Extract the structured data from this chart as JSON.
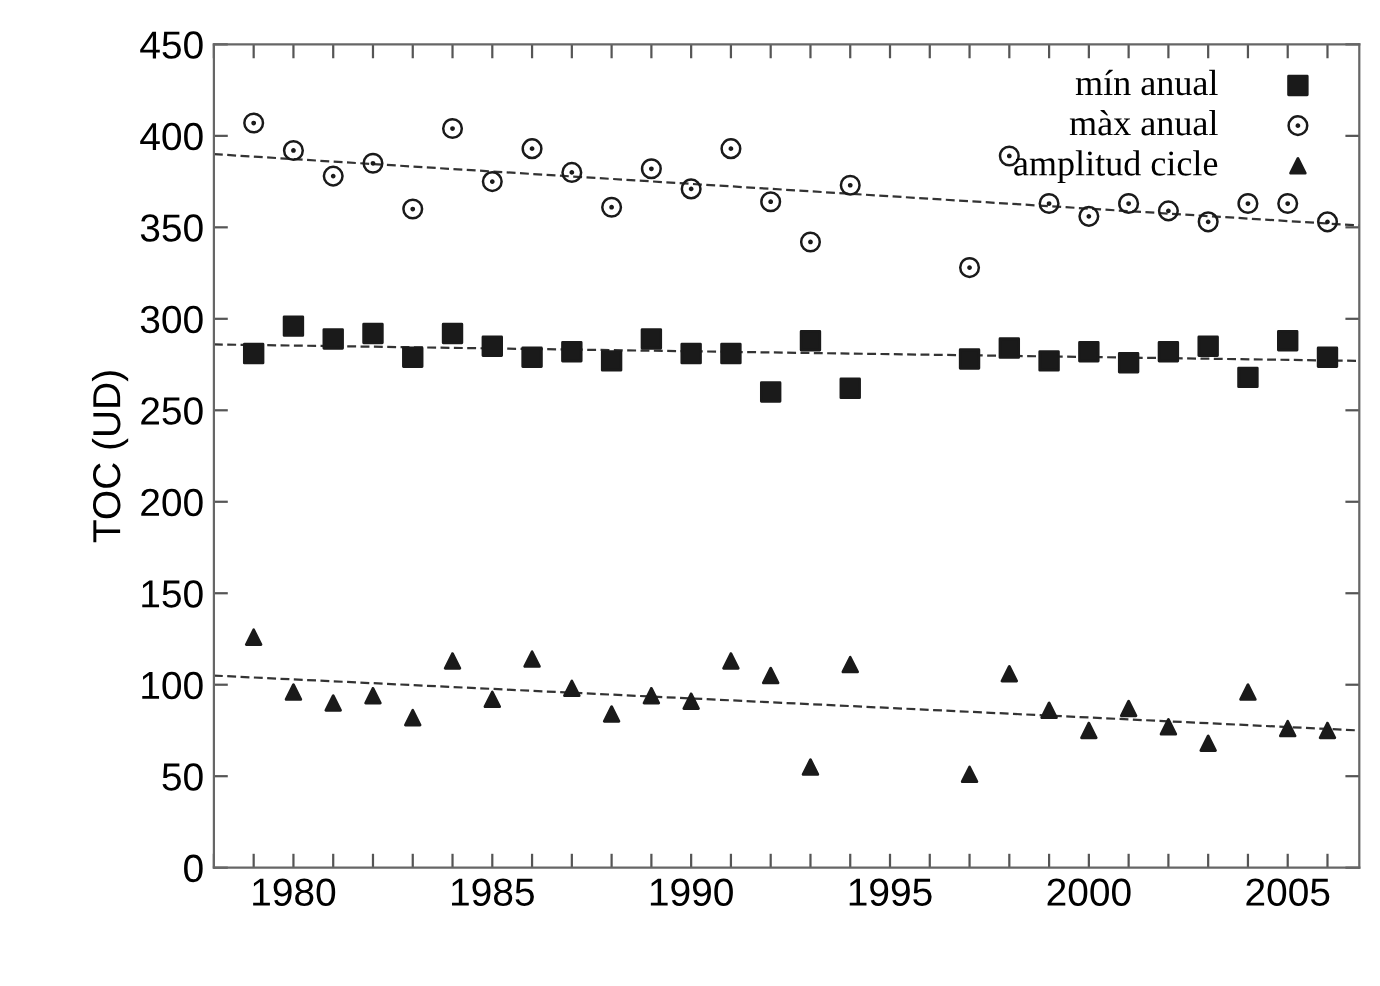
{
  "chart_data": {
    "type": "scatter",
    "ylabel": "TOC (UD)",
    "xlim": [
      1978,
      2006.8
    ],
    "ylim": [
      0,
      450
    ],
    "xticks": [
      {
        "value": 1978,
        "label": null
      },
      {
        "value": 1979,
        "label": null
      },
      1980,
      {
        "value": 1981,
        "label": null
      },
      {
        "value": 1982,
        "label": null
      },
      {
        "value": 1983,
        "label": null
      },
      {
        "value": 1984,
        "label": null
      },
      1985,
      {
        "value": 1986,
        "label": null
      },
      {
        "value": 1987,
        "label": null
      },
      {
        "value": 1988,
        "label": null
      },
      {
        "value": 1989,
        "label": null
      },
      1990,
      {
        "value": 1991,
        "label": null
      },
      {
        "value": 1992,
        "label": null
      },
      {
        "value": 1993,
        "label": null
      },
      {
        "value": 1994,
        "label": null
      },
      1995,
      {
        "value": 1996,
        "label": null
      },
      {
        "value": 1997,
        "label": null
      },
      {
        "value": 1998,
        "label": null
      },
      {
        "value": 1999,
        "label": null
      },
      2000,
      {
        "value": 2001,
        "label": null
      },
      {
        "value": 2002,
        "label": null
      },
      {
        "value": 2003,
        "label": null
      },
      {
        "value": 2004,
        "label": null
      },
      2005,
      {
        "value": 2006,
        "label": null
      }
    ],
    "yticks": [
      0,
      50,
      100,
      150,
      200,
      250,
      300,
      350,
      400,
      450
    ],
    "grid": false,
    "legend": "top right",
    "series": [
      {
        "name": "mín anual",
        "color": "#1a1a1a",
        "marker": "square",
        "x": [
          1979,
          1980,
          1981,
          1982,
          1983,
          1984,
          1985,
          1986,
          1987,
          1988,
          1989,
          1990,
          1991,
          1992,
          1993,
          1994,
          1997,
          1998,
          1999,
          2000,
          2001,
          2002,
          2003,
          2004,
          2005,
          2006
        ],
        "values": [
          281,
          296,
          289,
          292,
          279,
          292,
          285,
          279,
          282,
          277,
          289,
          281,
          281,
          260,
          288,
          262,
          278,
          284,
          277,
          282,
          276,
          282,
          285,
          268,
          288,
          279
        ]
      },
      {
        "name": "màx anual",
        "color": "#1a1a1a",
        "marker": "circle",
        "x": [
          1979,
          1980,
          1981,
          1982,
          1983,
          1984,
          1985,
          1986,
          1987,
          1988,
          1989,
          1990,
          1991,
          1992,
          1993,
          1994,
          1997,
          1998,
          1999,
          2000,
          2001,
          2002,
          2003,
          2004,
          2005,
          2006
        ],
        "values": [
          407,
          392,
          378,
          385,
          360,
          404,
          375,
          393,
          380,
          361,
          382,
          371,
          393,
          364,
          342,
          373,
          328,
          389,
          363,
          356,
          363,
          359,
          353,
          363,
          363,
          353
        ]
      },
      {
        "name": "amplitud cicle",
        "color": "#1a1a1a",
        "marker": "triangle",
        "x": [
          1979,
          1980,
          1981,
          1982,
          1983,
          1984,
          1985,
          1986,
          1987,
          1988,
          1989,
          1990,
          1991,
          1992,
          1993,
          1994,
          1997,
          1998,
          1999,
          2000,
          2001,
          2002,
          2003,
          2004,
          2005,
          2006
        ],
        "values": [
          126,
          96,
          90,
          94,
          82,
          113,
          92,
          114,
          98,
          84,
          94,
          91,
          113,
          105,
          55,
          111,
          51,
          106,
          86,
          75,
          87,
          77,
          68,
          96,
          76,
          75
        ]
      },
      {
        "type": "line",
        "line_style": "dashed",
        "color": "#333333",
        "x": [
          1978,
          2006.8
        ],
        "values": [
          390,
          351
        ]
      },
      {
        "type": "line",
        "line_style": "dashed",
        "color": "#333333",
        "x": [
          1978,
          2006.8
        ],
        "values": [
          286,
          277
        ]
      },
      {
        "type": "line",
        "line_style": "dashed",
        "color": "#333333",
        "x": [
          1978,
          2006.8
        ],
        "values": [
          105,
          75
        ]
      }
    ]
  }
}
